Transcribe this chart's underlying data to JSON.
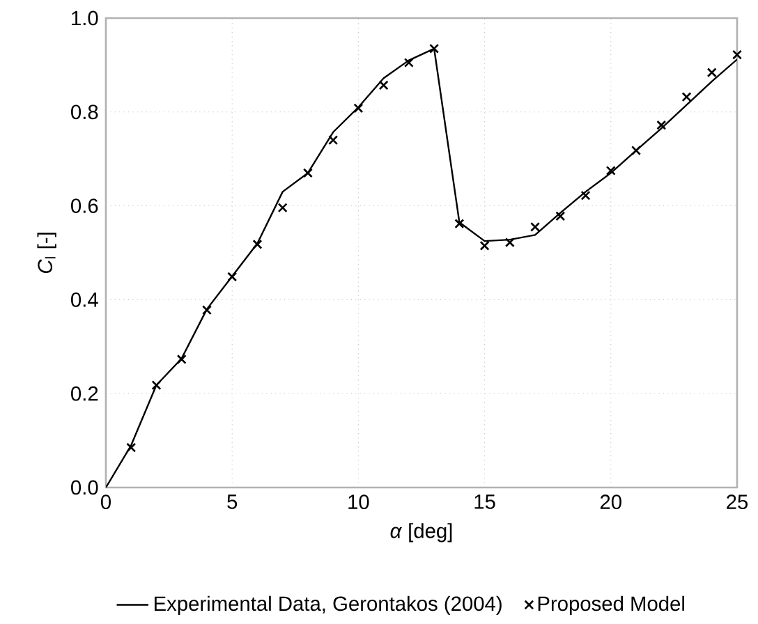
{
  "chart_data": {
    "type": "line",
    "xlabel": "*α* [deg]",
    "ylabel": "*C*$_{l}$ [-]",
    "xlim": [
      0,
      25
    ],
    "ylim": [
      0,
      1.0
    ],
    "xticks": [
      0,
      5,
      10,
      15,
      20,
      25
    ],
    "yticks": [
      {
        "value": 0,
        "label": "0.0"
      },
      0.2,
      0.4,
      0.6,
      0.8,
      {
        "value": 1.0,
        "label": "1.0"
      }
    ],
    "grid": true,
    "legend": "bottom",
    "series": [
      {
        "name": "Experimental Data, Gerontakos (2004)",
        "color": "#000000",
        "marker": "none",
        "line_style": "solid",
        "x": [
          0,
          1,
          2,
          3,
          4,
          5,
          6,
          7,
          8,
          9,
          10,
          11,
          12,
          13,
          14,
          15,
          16,
          17,
          18,
          19,
          20,
          21,
          22,
          23,
          24,
          25
        ],
        "values": [
          0,
          0.09,
          0.218,
          0.275,
          0.38,
          0.45,
          0.52,
          0.63,
          0.67,
          0.757,
          0.81,
          0.872,
          0.91,
          0.935,
          0.565,
          0.525,
          0.528,
          0.538,
          0.585,
          0.63,
          0.67,
          0.718,
          0.765,
          0.815,
          0.865,
          0.912
        ]
      },
      {
        "name": "Proposed Model",
        "type": "scatter",
        "color": "#000000",
        "marker": "cross",
        "x": [
          1,
          2,
          3,
          4,
          5,
          6,
          7,
          8,
          9,
          10,
          11,
          12,
          13,
          14,
          15,
          16,
          17,
          18,
          19,
          20,
          21,
          22,
          23,
          24,
          25
        ],
        "values": [
          0.085,
          0.218,
          0.273,
          0.378,
          0.449,
          0.518,
          0.596,
          0.67,
          0.74,
          0.808,
          0.857,
          0.905,
          0.935,
          0.562,
          0.515,
          0.522,
          0.555,
          0.578,
          0.622,
          0.675,
          0.718,
          0.772,
          0.832,
          0.884,
          0.922
        ]
      }
    ]
  }
}
